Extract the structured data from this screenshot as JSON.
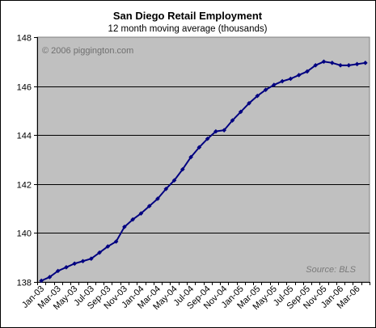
{
  "chart_data": {
    "type": "line",
    "title": "San Diego Retail Employment",
    "subtitle": "12 month moving average (thousands)",
    "watermark": "© 2006 piggington.com",
    "source": "Source: BLS",
    "xlabel": "",
    "ylabel": "",
    "ylim": [
      138,
      148
    ],
    "yticks": [
      138,
      140,
      142,
      144,
      146,
      148
    ],
    "grid": true,
    "plot_background": "#c0c0c0",
    "series_color": "#000080",
    "x": [
      "Jan-03",
      "Feb-03",
      "Mar-03",
      "Apr-03",
      "May-03",
      "Jun-03",
      "Jul-03",
      "Aug-03",
      "Sep-03",
      "Oct-03",
      "Nov-03",
      "Dec-03",
      "Jan-04",
      "Feb-04",
      "Mar-04",
      "Apr-04",
      "May-04",
      "Jun-04",
      "Jul-04",
      "Aug-04",
      "Sep-04",
      "Oct-04",
      "Nov-04",
      "Dec-04",
      "Jan-05",
      "Feb-05",
      "Mar-05",
      "Apr-05",
      "May-05",
      "Jun-05",
      "Jul-05",
      "Aug-05",
      "Sep-05",
      "Oct-05",
      "Nov-05",
      "Dec-05",
      "Jan-06",
      "Feb-06",
      "Mar-06",
      "Apr-06"
    ],
    "x_tick_labels": [
      "Jan-03",
      "Mar-03",
      "May-03",
      "Jul-03",
      "Sep-03",
      "Nov-03",
      "Jan-04",
      "Mar-04",
      "May-04",
      "Jul-04",
      "Sep-04",
      "Nov-04",
      "Jan-05",
      "Mar-05",
      "May-05",
      "Jul-05",
      "Sep-05",
      "Nov-05",
      "Jan-06",
      "Mar-06"
    ],
    "series": [
      {
        "values": [
          138.05,
          138.2,
          138.45,
          138.6,
          138.75,
          138.85,
          138.95,
          139.2,
          139.45,
          139.65,
          140.25,
          140.55,
          140.8,
          141.1,
          141.4,
          141.8,
          142.15,
          142.6,
          143.1,
          143.5,
          143.85,
          144.15,
          144.2,
          144.6,
          144.95,
          145.3,
          145.6,
          145.85,
          146.05,
          146.2,
          146.3,
          146.45,
          146.6,
          146.85,
          147.0,
          146.95,
          146.85,
          146.85,
          146.9,
          146.95
        ]
      }
    ]
  }
}
